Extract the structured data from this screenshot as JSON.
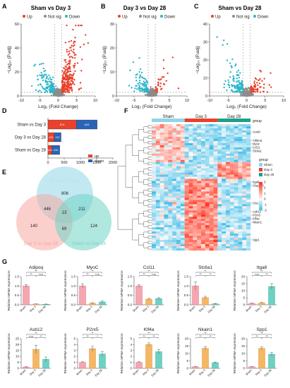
{
  "panels": {
    "A": {
      "letter": "A",
      "title": "Sham vs Day 3"
    },
    "B": {
      "letter": "B",
      "title": "Day 3 vs Day 28"
    },
    "C": {
      "letter": "C",
      "title": "Sham vs Day 28"
    },
    "D": {
      "letter": "D"
    },
    "E": {
      "letter": "E"
    },
    "F": {
      "letter": "F"
    },
    "G": {
      "letter": "G"
    }
  },
  "volcano_common": {
    "legend": [
      "Up",
      "Not sig",
      "Down"
    ],
    "xlabel": "Log₂ (Fold Change)",
    "ylabel": "−Log₁₀ (P.adj)"
  },
  "colors": {
    "up": "#e8412c",
    "down": "#2bb6c9",
    "notsig": "#8c8c8c",
    "shamBar": "#f4a7b0",
    "day3Bar": "#f5b766",
    "day28Bar": "#6fd0c4",
    "vennA": "#8fd6e8",
    "vennB": "#f7a9a2",
    "vennC": "#6fd3c2"
  },
  "chart_data": [
    {
      "panel": "A",
      "type": "scatter",
      "title": "Sham vs Day 3",
      "xlim": [
        -10,
        10
      ],
      "ylim": [
        0,
        60
      ],
      "xticks": [
        "-10",
        "-5",
        "0",
        "5",
        "10"
      ],
      "yticks": [
        "0",
        "20",
        "40",
        "60"
      ]
    },
    {
      "panel": "B",
      "type": "scatter",
      "title": "Day 3 vs Day 28",
      "xlim": [
        -10,
        10
      ],
      "ylim": [
        0,
        30
      ],
      "xticks": [
        "-10",
        "-5",
        "0",
        "5",
        "10"
      ],
      "yticks": [
        "0",
        "10",
        "20",
        "30"
      ]
    },
    {
      "panel": "C",
      "type": "scatter",
      "title": "Sham vs Day 28",
      "xlim": [
        -10,
        10
      ],
      "ylim": [
        0,
        40
      ],
      "xticks": [
        "-10",
        "-5",
        "0",
        "5",
        "10"
      ],
      "yticks": [
        "0",
        "10",
        "20",
        "30",
        "40"
      ]
    },
    {
      "panel": "D",
      "type": "bar",
      "orientation": "horizontal",
      "stacked": true,
      "categories": [
        "Sham vs Day 3",
        "Day 3 vs Day 28",
        "Sham vs Day 28"
      ],
      "series": [
        {
          "name": "up",
          "values": [
            874,
            192,
            121
          ]
        },
        {
          "name": "down",
          "values": [
            643,
            211,
            242
          ]
        }
      ],
      "xlim": [
        0,
        2000
      ],
      "xticks": [
        "0",
        "500",
        "1000",
        "1500",
        "2000"
      ],
      "legend": "bottom-right"
    },
    {
      "panel": "E",
      "type": "venn",
      "sets": [
        "Sham vs Day 3",
        "Day 3 vs Day 28",
        "Sham vs Day 28"
      ],
      "regions": {
        "A_only": 806,
        "B_only": 140,
        "C_only": 124,
        "AB": 446,
        "AC": 211,
        "BC": 69,
        "ABC": 13
      }
    },
    {
      "panel": "F",
      "type": "heatmap",
      "groups": [
        "Sham",
        "Day 3",
        "Day 28"
      ],
      "annotation_label": "group",
      "legend_title": "group",
      "color_scale": [
        "3",
        "2",
        "1",
        "0",
        "-1",
        "-2"
      ],
      "genes": [
        "Acot6",
        "Adipoq",
        "Myoc",
        "Ccl11",
        "Slc6a1",
        "Itga8",
        "Ctsg100",
        "Cts1",
        "Asb12",
        "P2rx5",
        "Klf4a",
        "Nkain1",
        "Spp1"
      ]
    },
    {
      "panel": "G",
      "type": "bar",
      "categories": [
        "Sham",
        "Day 3",
        "Day 28"
      ],
      "ylabel": "Relative mRNA expression",
      "subplots": [
        {
          "gene": "Adipoq",
          "values": [
            1.0,
            0.04,
            0.03
          ],
          "errors": [
            0.08,
            0.01,
            0.01
          ],
          "ylim": [
            0,
            1.5
          ],
          "yticks": [
            "0.0",
            "0.5",
            "1.0",
            "1.5"
          ],
          "sig": [
            "**",
            "**",
            "n.s"
          ]
        },
        {
          "gene": "MyoC",
          "values": [
            1.0,
            0.08,
            0.15
          ],
          "errors": [
            0.12,
            0.03,
            0.06
          ],
          "ylim": [
            0,
            1.5
          ],
          "yticks": [
            "0.0",
            "0.5",
            "1.0",
            "1.5"
          ],
          "sig": [
            "**",
            "**",
            "n.s"
          ]
        },
        {
          "gene": "Ccl11",
          "values": [
            1.0,
            0.3,
            0.33
          ],
          "errors": [
            0.07,
            0.04,
            0.05
          ],
          "ylim": [
            0,
            1.5
          ],
          "yticks": [
            "0.0",
            "0.5",
            "1.0",
            "1.5"
          ],
          "sig": [
            "**",
            "**",
            "n.s"
          ]
        },
        {
          "gene": "Slc6a1",
          "values": [
            1.0,
            0.38,
            0.05
          ],
          "errors": [
            0.22,
            0.07,
            0.02
          ],
          "ylim": [
            0,
            1.5
          ],
          "yticks": [
            "0.0",
            "0.5",
            "1.0",
            "1.5"
          ],
          "sig": [
            "**",
            "**",
            "**"
          ]
        },
        {
          "gene": "Itga8",
          "values": [
            1.0,
            1.3,
            13.0
          ],
          "errors": [
            0.2,
            0.3,
            2.0
          ],
          "ylim": [
            0,
            20
          ],
          "yticks": [
            "0",
            "5",
            "10",
            "15",
            "20"
          ],
          "sig": [
            "**",
            "n.s",
            "**"
          ]
        },
        {
          "gene": "Asb12",
          "values": [
            1.0,
            16.0,
            7.5
          ],
          "errors": [
            0.3,
            3.5,
            2.0
          ],
          "ylim": [
            0,
            25
          ],
          "yticks": [
            "0",
            "5",
            "10",
            "15",
            "20",
            "25"
          ],
          "sig": [
            "**",
            "n.s",
            "**"
          ]
        },
        {
          "gene": "P2rx5",
          "values": [
            1.0,
            3.3,
            2.4
          ],
          "errors": [
            0.1,
            0.4,
            0.4
          ],
          "ylim": [
            0,
            5
          ],
          "yticks": [
            "0",
            "1",
            "2",
            "3",
            "4",
            "5"
          ],
          "sig": [
            "**",
            "**",
            "*"
          ]
        },
        {
          "gene": "Klf4a",
          "values": [
            1.0,
            4.0,
            2.8
          ],
          "errors": [
            0.1,
            0.3,
            0.4
          ],
          "ylim": [
            0,
            5
          ],
          "yticks": [
            "0",
            "1",
            "2",
            "3",
            "4",
            "5"
          ],
          "sig": [
            "**",
            "**",
            "**"
          ]
        },
        {
          "gene": "Nkain1",
          "values": [
            1.0,
            13.5,
            3.8
          ],
          "errors": [
            0.2,
            1.2,
            0.4
          ],
          "ylim": [
            0,
            20
          ],
          "yticks": [
            "0",
            "5",
            "10",
            "15",
            "20"
          ],
          "sig": [
            "**",
            "**",
            "**"
          ]
        },
        {
          "gene": "Spp1",
          "values": [
            1.0,
            13.5,
            9.5
          ],
          "errors": [
            0.2,
            0.9,
            1.2
          ],
          "ylim": [
            0,
            20
          ],
          "yticks": [
            "0",
            "5",
            "10",
            "15",
            "20"
          ],
          "sig": [
            "**",
            "**",
            "**"
          ]
        }
      ]
    }
  ]
}
